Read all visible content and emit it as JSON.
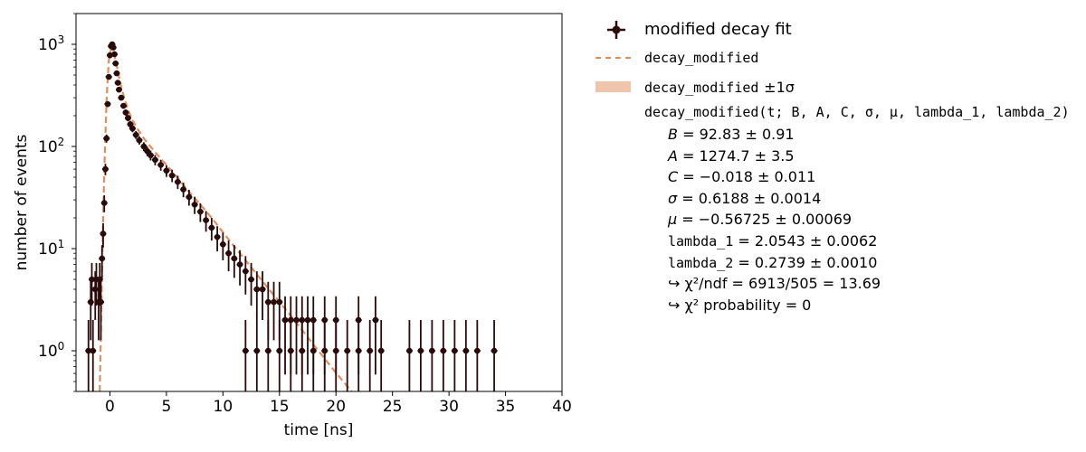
{
  "chart_data": {
    "type": "scatter",
    "xlabel": "time [ns]",
    "ylabel": "number of events",
    "xlim": [
      -3,
      40
    ],
    "ylim": [
      0.4,
      2000
    ],
    "yscale": "log",
    "x_ticks": [
      "0",
      "5",
      "10",
      "15",
      "20",
      "25",
      "30",
      "35",
      "40"
    ],
    "y_ticks": [
      "10^0",
      "10^1",
      "10^2",
      "10^3"
    ],
    "grid": false,
    "legend_placement": "outside-right",
    "colors": {
      "data": "#2a0a0a",
      "fit": "#e08e5b",
      "band": "#efc6ac"
    },
    "series": [
      {
        "name": "modified decay fit",
        "style": "errorbar-points",
        "points": [
          [
            -1.9,
            1
          ],
          [
            -1.7,
            3
          ],
          [
            -1.6,
            5
          ],
          [
            -1.5,
            1
          ],
          [
            -1.3,
            4
          ],
          [
            -1.2,
            5
          ],
          [
            -1.0,
            3
          ],
          [
            -0.9,
            5
          ],
          [
            -0.8,
            3
          ],
          [
            -0.7,
            8
          ],
          [
            -0.6,
            14
          ],
          [
            -0.5,
            28
          ],
          [
            -0.4,
            60
          ],
          [
            -0.3,
            120
          ],
          [
            -0.2,
            260
          ],
          [
            -0.1,
            480
          ],
          [
            0.0,
            780
          ],
          [
            0.1,
            960
          ],
          [
            0.2,
            1000
          ],
          [
            0.3,
            930
          ],
          [
            0.4,
            800
          ],
          [
            0.5,
            650
          ],
          [
            0.6,
            520
          ],
          [
            0.7,
            420
          ],
          [
            0.8,
            360
          ],
          [
            1.0,
            300
          ],
          [
            1.2,
            250
          ],
          [
            1.4,
            215
          ],
          [
            1.6,
            190
          ],
          [
            1.8,
            165
          ],
          [
            2.0,
            150
          ],
          [
            2.3,
            130
          ],
          [
            2.6,
            115
          ],
          [
            3.0,
            100
          ],
          [
            3.3,
            90
          ],
          [
            3.6,
            82
          ],
          [
            4.0,
            74
          ],
          [
            4.5,
            66
          ],
          [
            5.0,
            58
          ],
          [
            5.5,
            52
          ],
          [
            6.0,
            45
          ],
          [
            6.5,
            38
          ],
          [
            7.0,
            32
          ],
          [
            7.5,
            27
          ],
          [
            8.0,
            23
          ],
          [
            8.5,
            19
          ],
          [
            9.0,
            16
          ],
          [
            9.5,
            13
          ],
          [
            10.0,
            11
          ],
          [
            10.5,
            9
          ],
          [
            11.0,
            8
          ],
          [
            11.5,
            7
          ],
          [
            12.0,
            6
          ],
          [
            12.5,
            5
          ],
          [
            13.0,
            4
          ],
          [
            13.5,
            4
          ],
          [
            14.0,
            3
          ],
          [
            14.5,
            3
          ],
          [
            15.0,
            3
          ],
          [
            15.5,
            2
          ],
          [
            16.0,
            2
          ],
          [
            16.5,
            2
          ],
          [
            17.0,
            2
          ],
          [
            17.5,
            2
          ],
          [
            18.0,
            2
          ],
          [
            19.0,
            2
          ],
          [
            20.0,
            2
          ],
          [
            22.0,
            2
          ],
          [
            23.5,
            2
          ],
          [
            12.0,
            1
          ],
          [
            13.0,
            1
          ],
          [
            14.0,
            1
          ],
          [
            15.0,
            1
          ],
          [
            16.0,
            1
          ],
          [
            17.0,
            1
          ],
          [
            18.0,
            1
          ],
          [
            19.0,
            1
          ],
          [
            20.0,
            1
          ],
          [
            21.0,
            1
          ],
          [
            22.0,
            1
          ],
          [
            23.0,
            1
          ],
          [
            24.0,
            1
          ],
          [
            26.5,
            1
          ],
          [
            27.5,
            1
          ],
          [
            28.5,
            1
          ],
          [
            29.5,
            1
          ],
          [
            30.5,
            1
          ],
          [
            31.5,
            1
          ],
          [
            32.5,
            1
          ],
          [
            34.0,
            1
          ]
        ]
      },
      {
        "name": "decay_modified",
        "style": "dashed-line",
        "points": [
          [
            -0.9,
            0.4
          ],
          [
            -0.8,
            1.5
          ],
          [
            -0.7,
            6
          ],
          [
            -0.6,
            20
          ],
          [
            -0.5,
            55
          ],
          [
            -0.4,
            130
          ],
          [
            -0.3,
            270
          ],
          [
            -0.2,
            470
          ],
          [
            -0.1,
            680
          ],
          [
            0.0,
            830
          ],
          [
            0.1,
            900
          ],
          [
            0.2,
            890
          ],
          [
            0.4,
            780
          ],
          [
            0.6,
            620
          ],
          [
            0.8,
            480
          ],
          [
            1.0,
            380
          ],
          [
            1.3,
            290
          ],
          [
            1.6,
            230
          ],
          [
            2.0,
            180
          ],
          [
            2.5,
            145
          ],
          [
            3.0,
            120
          ],
          [
            4.0,
            88
          ],
          [
            5.0,
            66
          ],
          [
            6.0,
            49
          ],
          [
            7.0,
            36
          ],
          [
            8.0,
            27
          ],
          [
            9.0,
            20
          ],
          [
            10.0,
            14.5
          ],
          [
            11.0,
            10.5
          ],
          [
            12.0,
            7.7
          ],
          [
            13.0,
            5.6
          ],
          [
            14.0,
            4.1
          ],
          [
            15.0,
            3.0
          ],
          [
            16.0,
            2.2
          ],
          [
            17.0,
            1.6
          ],
          [
            18.0,
            1.15
          ],
          [
            19.0,
            0.84
          ],
          [
            20.0,
            0.61
          ],
          [
            21.0,
            0.45
          ],
          [
            22.0,
            0.33
          ]
        ]
      }
    ]
  },
  "legend": {
    "data_label": "modified decay fit",
    "fit_label": "decay_modified",
    "band_label_name": "decay_modified",
    "band_label_sigma": "±1σ"
  },
  "fit": {
    "function": "decay_modified(t; B, A, C, σ, μ, lambda_1, lambda_2)",
    "params": [
      {
        "name": "B",
        "value": "= 92.83 ± 0.91",
        "mono": false
      },
      {
        "name": "A",
        "value": "= 1274.7 ± 3.5",
        "mono": false
      },
      {
        "name": "C",
        "value": "= −0.018 ± 0.011",
        "mono": false
      },
      {
        "name": "σ",
        "value": "= 0.6188 ± 0.0014",
        "mono": false
      },
      {
        "name": "μ",
        "value": "= −0.56725 ± 0.00069",
        "mono": false
      },
      {
        "name": "lambda_1",
        "value": "= 2.0543 ± 0.0062",
        "mono": true
      },
      {
        "name": "lambda_2",
        "value": "= 0.2739 ± 0.0010",
        "mono": true
      }
    ],
    "chi2_ndf": "↪ χ²/ndf = 6913/505 = 13.69",
    "chi2_prob": "↪ χ² probability = 0"
  }
}
